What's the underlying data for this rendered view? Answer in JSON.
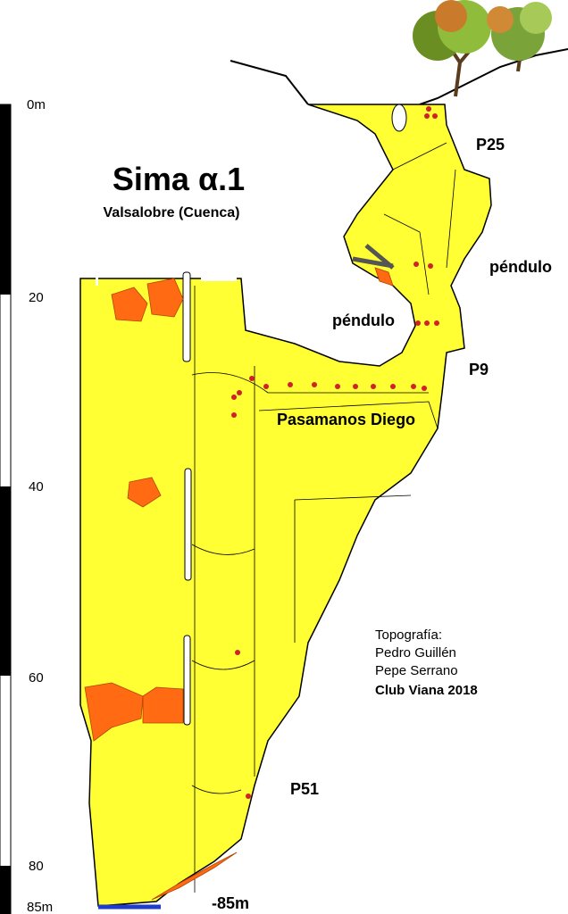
{
  "title": "Sima α.1",
  "subtitle": "Valsalobre (Cuenca)",
  "scale": {
    "labels": [
      "0m",
      "20",
      "40",
      "60",
      "80",
      "85m"
    ]
  },
  "labels": [
    "P25",
    "péndulo",
    "péndulo",
    "P9",
    "Pasamanos Diego",
    "P51",
    "-85m"
  ],
  "credits": [
    "Topografía:",
    "Pedro Guillén",
    "Pepe Serrano",
    "Club Viana 2018"
  ]
}
